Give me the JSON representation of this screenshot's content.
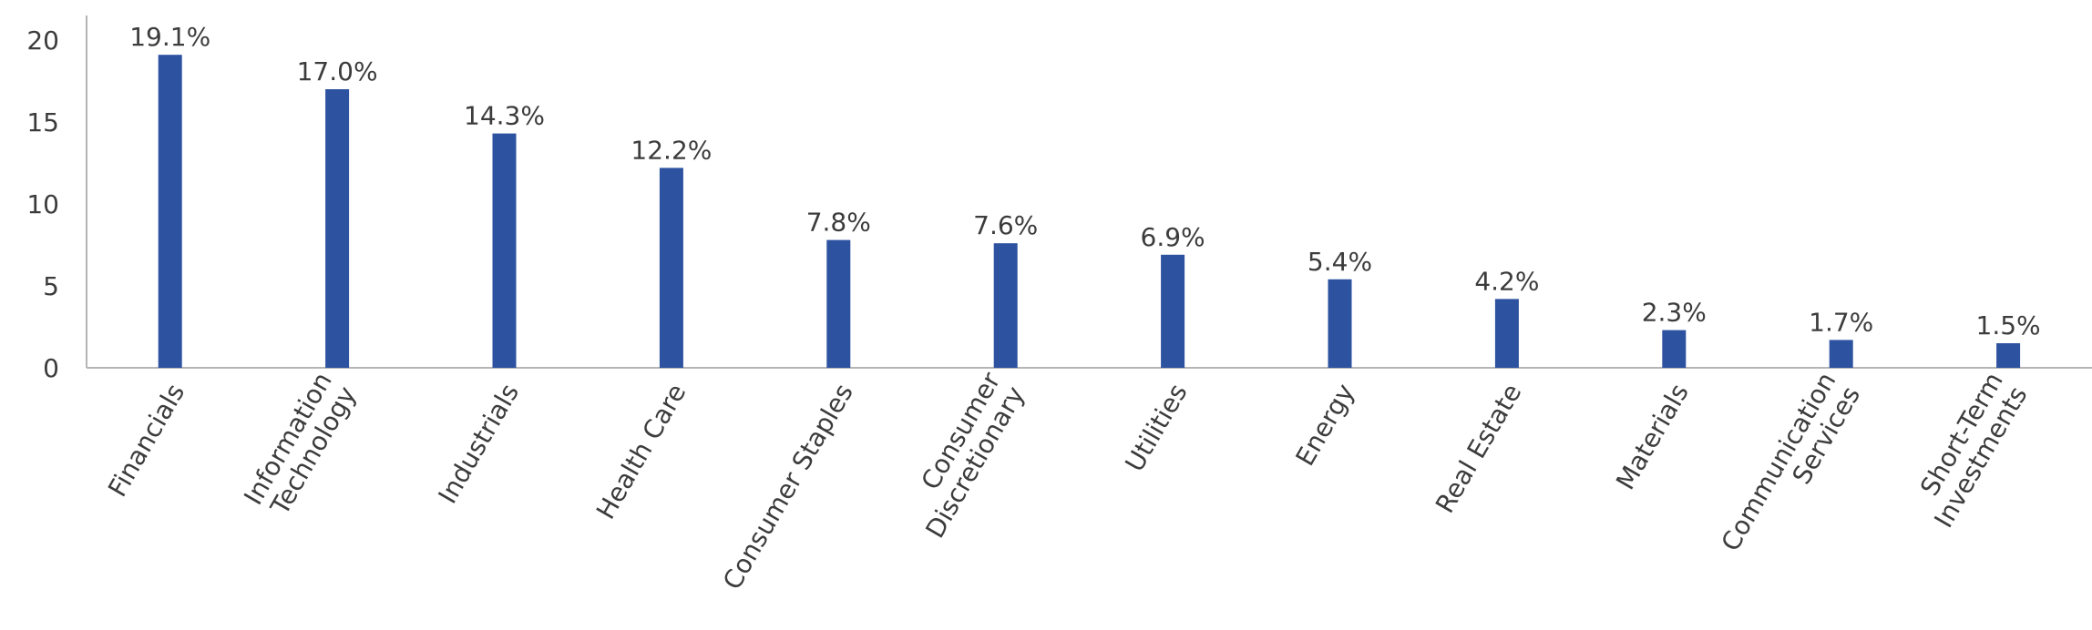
{
  "chart_data": {
    "type": "bar",
    "categories": [
      "Financials",
      "Information Technology",
      "Industrials",
      "Health Care",
      "Consumer Staples",
      "Consumer Discretionary",
      "Utilities",
      "Energy",
      "Real Estate",
      "Materials",
      "Communication Services",
      "Short-Term Investments"
    ],
    "values": [
      19.1,
      17.0,
      14.3,
      12.2,
      7.8,
      7.6,
      6.9,
      5.4,
      4.2,
      2.3,
      1.7,
      1.5
    ],
    "value_labels": [
      "19.1%",
      "17.0%",
      "14.3%",
      "12.2%",
      "7.8%",
      "7.6%",
      "6.9%",
      "5.4%",
      "4.2%",
      "2.3%",
      "1.7%",
      "1.5%"
    ],
    "color": "#2d52a0",
    "ylim": [
      0,
      21.5
    ],
    "yticks": [
      0,
      5,
      10,
      15,
      20
    ],
    "grid": false
  }
}
